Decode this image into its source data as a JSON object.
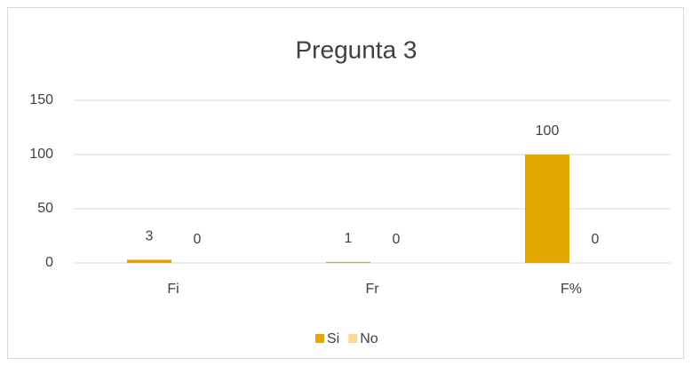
{
  "chart_data": {
    "type": "bar",
    "title": "Pregunta 3",
    "categories": [
      "Fi",
      "Fr",
      "F%"
    ],
    "series": [
      {
        "name": "Si",
        "color": "#e3a800",
        "values": [
          3,
          1,
          100
        ]
      },
      {
        "name": "No",
        "color": "#ffd591",
        "values": [
          0,
          0,
          0
        ]
      }
    ],
    "ylim": [
      0,
      150
    ],
    "yticks": [
      0,
      50,
      100,
      150
    ],
    "grid": true,
    "legend": "bottom"
  }
}
